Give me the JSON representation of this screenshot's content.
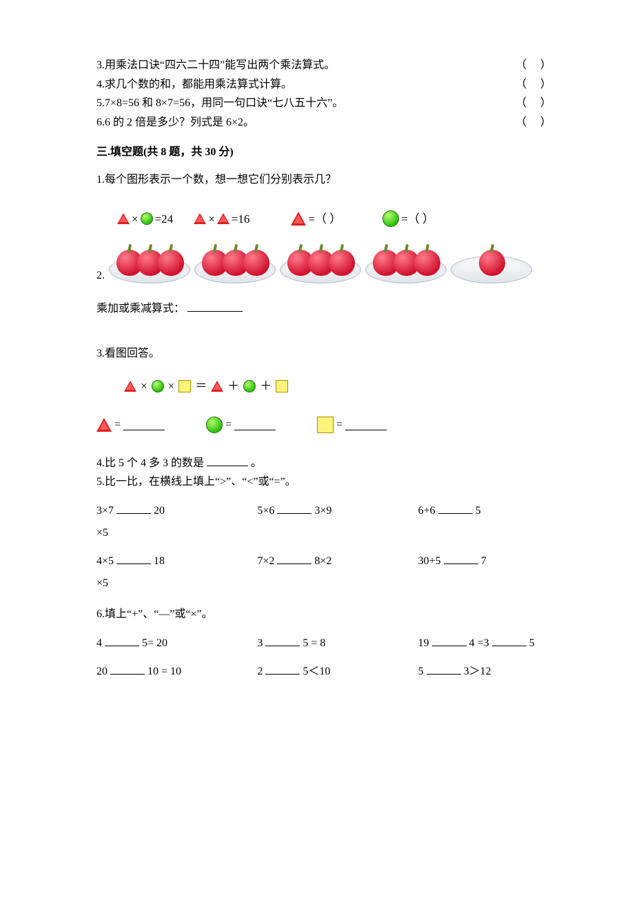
{
  "tf": {
    "q3": "3.用乘法口诀“四六二十四”能写出两个乘法算式。",
    "q4": "4.求几个数的和，都能用乘法算式计算。",
    "q5": "5.7×8=56 和 8×7=56，用同一句口诀“七八五十六”。",
    "q6": "6.6 的 2 倍是多少？列式是 6×2。",
    "paren": "（     ）"
  },
  "section3": {
    "heading": "三.填空题(共 8 题，共 30 分)",
    "q1": {
      "text": "1.每个图形表示一个数，想一想它们分别表示几？",
      "eq1": "=24",
      "eq2": "=16",
      "ans_tri": "=（    ）",
      "ans_circ": "=（    ）"
    },
    "q2": {
      "num": "2.",
      "label": "乘加或乘减算式：",
      "plates": [
        3,
        3,
        3,
        3,
        1
      ]
    },
    "q3": {
      "text": "3.看图回答。",
      "times": "×",
      "eq": "＝",
      "plus": "＋"
    },
    "q4": "4.比 5 个 4 多 3 的数是",
    "q4_end": "。",
    "q5": {
      "text": "5.比一比，在横线上填上“>”、“<”或“=”。",
      "r1c1a": "3×7",
      "r1c1b": "20",
      "r1c2a": "5×6",
      "r1c2b": "3×9",
      "r1c3a": "6+6",
      "r1c3b": "5",
      "r1wrap": "×5",
      "r2c1a": "4×5",
      "r2c1b": "18",
      "r2c2a": "7×2",
      "r2c2b": "8×2",
      "r2c3a": "30+5",
      "r2c3b": "7",
      "r2wrap": "×5"
    },
    "q6": {
      "text": "6.填上“+”、“—”或“×”。",
      "r1c1a": "4",
      "r1c1b": "5= 20",
      "r1c2a": "3",
      "r1c2b": "5 = 8",
      "r1c3a": "19",
      "r1c3b": "4 =3",
      "r1c3c": "5",
      "r2c1a": "20",
      "r2c1b": "10 = 10",
      "r2c2a": "2",
      "r2c2b": "5＜10",
      "r2c3a": "5",
      "r2c3b": "3＞12"
    }
  }
}
